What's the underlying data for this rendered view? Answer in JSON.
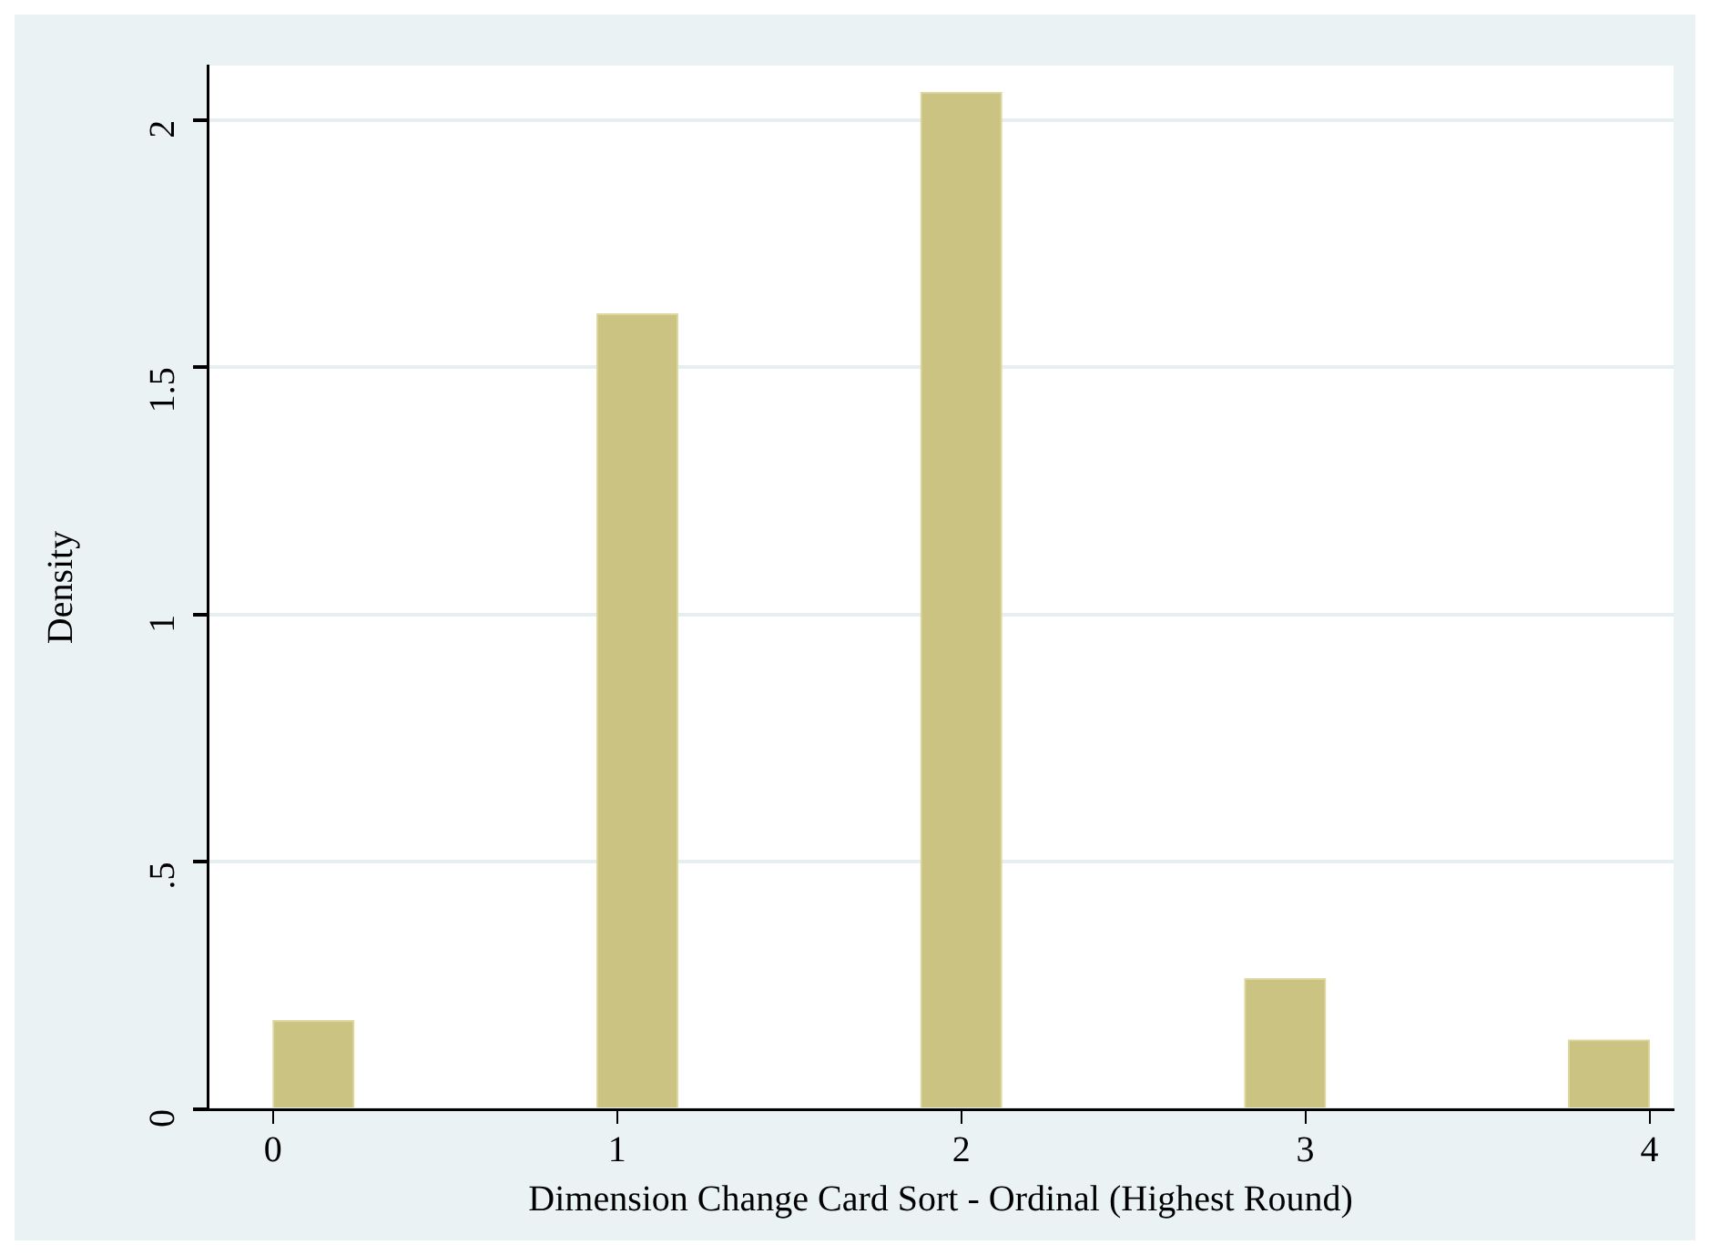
{
  "chart_data": {
    "type": "histogram",
    "xlabel": "Dimension Change Card Sort - Ordinal (Highest Round)",
    "ylabel": "Density",
    "bins": [
      0,
      0.2353,
      0.4706,
      0.7059,
      0.9412,
      1.1765,
      1.4118,
      1.6471,
      1.8824,
      2.1176,
      2.3529,
      2.5882,
      2.8235,
      3.0588,
      3.2941,
      3.5294,
      3.7647,
      4
    ],
    "values": [
      0.179,
      0,
      0,
      0,
      1.608,
      0,
      0,
      0,
      2.056,
      0,
      0,
      0,
      0.264,
      0,
      0,
      0,
      0.14
    ],
    "color": "#cbc382",
    "xlim": [
      -0.19,
      4.07
    ],
    "xticks": [
      0,
      1,
      2,
      3,
      4
    ],
    "ylim": [
      0,
      2.11
    ],
    "yticks": [
      0,
      {
        "value": 0.5,
        "label": ".5"
      },
      1,
      1.5,
      2
    ],
    "grid": "y",
    "legend": false
  }
}
